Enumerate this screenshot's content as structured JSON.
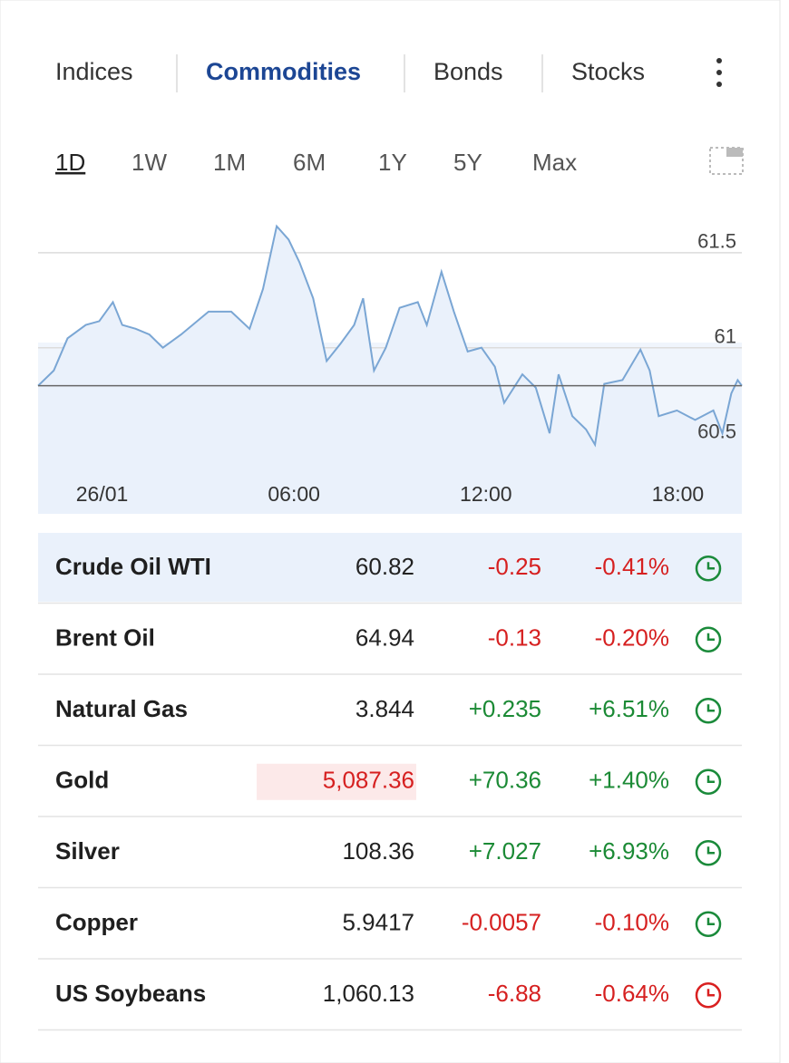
{
  "tabs": {
    "items": [
      "Indices",
      "Commodities",
      "Bonds",
      "Stocks"
    ],
    "active": 1
  },
  "periods": {
    "items": [
      "1D",
      "1W",
      "1M",
      "6M",
      "1Y",
      "5Y",
      "Max"
    ],
    "active": 0
  },
  "chart_data": {
    "type": "line",
    "x": [
      -2,
      -1.51,
      -1.08,
      -0.51,
      -0.09,
      0.34,
      0.63,
      1.05,
      1.48,
      1.9,
      2.47,
      3.33,
      4.04,
      4.61,
      5.03,
      5.46,
      5.83,
      6.17,
      6.6,
      7.02,
      7.45,
      7.88,
      8.16,
      8.5,
      8.87,
      9.3,
      9.87,
      10.15,
      10.61,
      11,
      11.43,
      11.86,
      12.28,
      12.57,
      13.14,
      13.56,
      13.99,
      14.27,
      14.7,
      15.13,
      15.41,
      15.7,
      16.27,
      16.83,
      17.12,
      17.4,
      17.97,
      18.54,
      19.11,
      19.39,
      19.67,
      19.87,
      20
    ],
    "values": [
      60.8,
      60.88,
      61.05,
      61.12,
      61.14,
      61.24,
      61.12,
      61.1,
      61.07,
      61.0,
      61.07,
      61.19,
      61.19,
      61.1,
      61.31,
      61.64,
      61.57,
      61.45,
      61.26,
      60.93,
      61.02,
      61.12,
      61.26,
      60.88,
      61.0,
      61.21,
      61.24,
      61.12,
      61.4,
      61.19,
      60.98,
      61.0,
      60.9,
      60.71,
      60.86,
      60.79,
      60.55,
      60.86,
      60.64,
      60.57,
      60.49,
      60.81,
      60.83,
      60.99,
      60.88,
      60.64,
      60.67,
      60.62,
      60.67,
      60.55,
      60.76,
      60.83,
      60.8
    ],
    "color": "#7aa6d4",
    "reference_line": 60.8,
    "xlim": [
      -2,
      20
    ],
    "xticks": [
      {
        "value": 0,
        "label": "26/01"
      },
      {
        "value": 6,
        "label": "06:00"
      },
      {
        "value": 12,
        "label": "12:00"
      },
      {
        "value": 18,
        "label": "18:00"
      }
    ],
    "ylim": [
      60.35,
      61.7
    ],
    "yticks": [
      60.5,
      61,
      61.5
    ],
    "grid": true
  },
  "table": {
    "rows": [
      {
        "name": "Crude Oil WTI",
        "price": "60.82",
        "change": "-0.25",
        "change_pct": "-0.41%",
        "direction": "down",
        "icon_color": "#1a8a3a",
        "selected": true,
        "highlight": false
      },
      {
        "name": "Brent Oil",
        "price": "64.94",
        "change": "-0.13",
        "change_pct": "-0.20%",
        "direction": "down",
        "icon_color": "#1a8a3a",
        "selected": false,
        "highlight": false
      },
      {
        "name": "Natural Gas",
        "price": "3.844",
        "change": "+0.235",
        "change_pct": "+6.51%",
        "direction": "up",
        "icon_color": "#1a8a3a",
        "selected": false,
        "highlight": false
      },
      {
        "name": "Gold",
        "price": "5,087.36",
        "change": "+70.36",
        "change_pct": "+1.40%",
        "direction": "up",
        "icon_color": "#1a8a3a",
        "selected": false,
        "highlight": true
      },
      {
        "name": "Silver",
        "price": "108.36",
        "change": "+7.027",
        "change_pct": "+6.93%",
        "direction": "up",
        "icon_color": "#1a8a3a",
        "selected": false,
        "highlight": false
      },
      {
        "name": "Copper",
        "price": "5.9417",
        "change": "-0.0057",
        "change_pct": "-0.10%",
        "direction": "down",
        "icon_color": "#1a8a3a",
        "selected": false,
        "highlight": false
      },
      {
        "name": "US Soybeans",
        "price": "1,060.13",
        "change": "-6.88",
        "change_pct": "-0.64%",
        "direction": "down",
        "icon_color": "#d92020",
        "selected": false,
        "highlight": false
      }
    ]
  }
}
